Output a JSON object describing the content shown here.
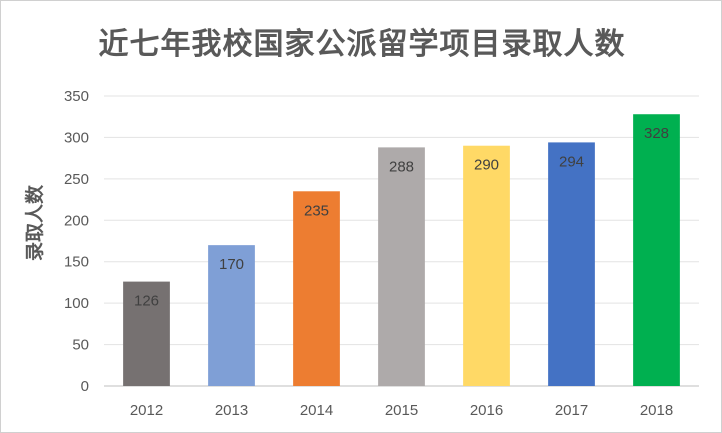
{
  "chart_data": {
    "type": "bar",
    "title": "近七年我校国家公派留学项目录取人数",
    "xlabel": "",
    "ylabel": "录取人数",
    "categories": [
      "2012",
      "2013",
      "2014",
      "2015",
      "2016",
      "2017",
      "2018"
    ],
    "values": [
      126,
      170,
      235,
      288,
      290,
      294,
      328
    ],
    "bar_colors": [
      "#767171",
      "#7f9fd6",
      "#ed7d31",
      "#aeaaaa",
      "#ffd966",
      "#4472c4",
      "#00b050"
    ],
    "ylim": [
      0,
      350
    ],
    "yticks": [
      0,
      50,
      100,
      150,
      200,
      250,
      300,
      350
    ],
    "grid": true,
    "legend": "none",
    "data_labels": true
  }
}
